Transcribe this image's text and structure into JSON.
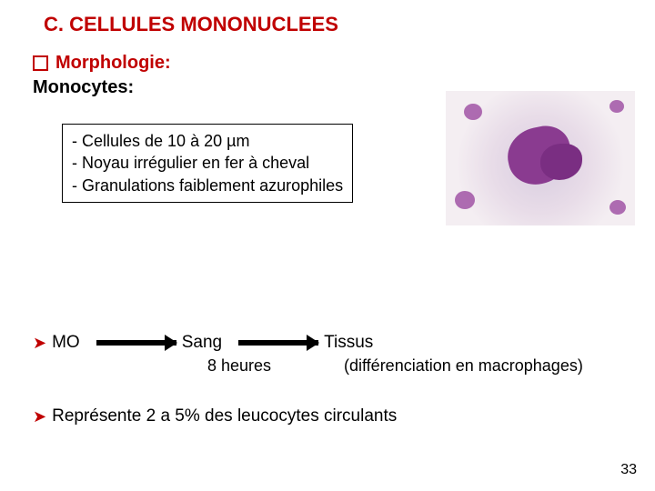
{
  "title": "C. CELLULES MONONUCLEES",
  "section_label": "Morphologie:",
  "subheader": "Monocytes:",
  "box": {
    "line1": "- Cellules de 10 à 20 µm",
    "line2": "- Noyau irrégulier en fer à cheval",
    "line3": "- Granulations faiblement azurophiles"
  },
  "flow": {
    "origin": "MO",
    "mid": "Sang",
    "end": "Tissus",
    "duration": "8 heures",
    "diff": "(différenciation en macrophages)"
  },
  "last_bullet": "Représente 2 a 5% des leucocytes circulants",
  "page_number": "33",
  "colors": {
    "accent": "#c00000",
    "text": "#000000",
    "arrow": "#000000",
    "box_border": "#000000"
  },
  "image": {
    "description": "Blood smear micrograph of a monocyte (purple irregular nucleus, pale cytoplasm)",
    "nucleus_color": "#8a3b90",
    "cytoplasm_color": "#e8dce8"
  }
}
